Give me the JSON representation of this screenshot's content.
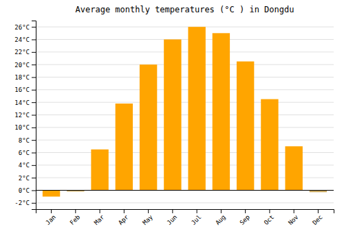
{
  "chart_data": {
    "type": "bar",
    "title": "Average monthly temperatures (°C ) in Dongdu",
    "categories": [
      "Jan",
      "Feb",
      "Mar",
      "Apr",
      "May",
      "Jun",
      "Jul",
      "Aug",
      "Sep",
      "Oct",
      "Nov",
      "Dec"
    ],
    "values": [
      -1.0,
      -0.2,
      6.5,
      13.8,
      20.0,
      24.0,
      26.0,
      25.0,
      20.5,
      14.5,
      7.0,
      -0.3
    ],
    "colors": [
      "#FFA500",
      "#C8A860",
      "#FFA500",
      "#FFA500",
      "#FFA500",
      "#FFA500",
      "#FFA500",
      "#FFA500",
      "#FFA500",
      "#FFA500",
      "#FFA500",
      "#C8A860"
    ],
    "ylim": [
      -3,
      27
    ],
    "yticks": [
      {
        "value": -2,
        "label": "-2°C"
      },
      {
        "value": 0,
        "label": "0°C"
      },
      {
        "value": 2,
        "label": "2°C"
      },
      {
        "value": 4,
        "label": "4°C"
      },
      {
        "value": 6,
        "label": "6°C"
      },
      {
        "value": 8,
        "label": "8°C"
      },
      {
        "value": 10,
        "label": "10°C"
      },
      {
        "value": 12,
        "label": "12°C"
      },
      {
        "value": 14,
        "label": "14°C"
      },
      {
        "value": 16,
        "label": "16°C"
      },
      {
        "value": 18,
        "label": "18°C"
      },
      {
        "value": 20,
        "label": "20°C"
      },
      {
        "value": 22,
        "label": "22°C"
      },
      {
        "value": 24,
        "label": "24°C"
      },
      {
        "value": 26,
        "label": "26°C"
      }
    ],
    "grid": true
  }
}
